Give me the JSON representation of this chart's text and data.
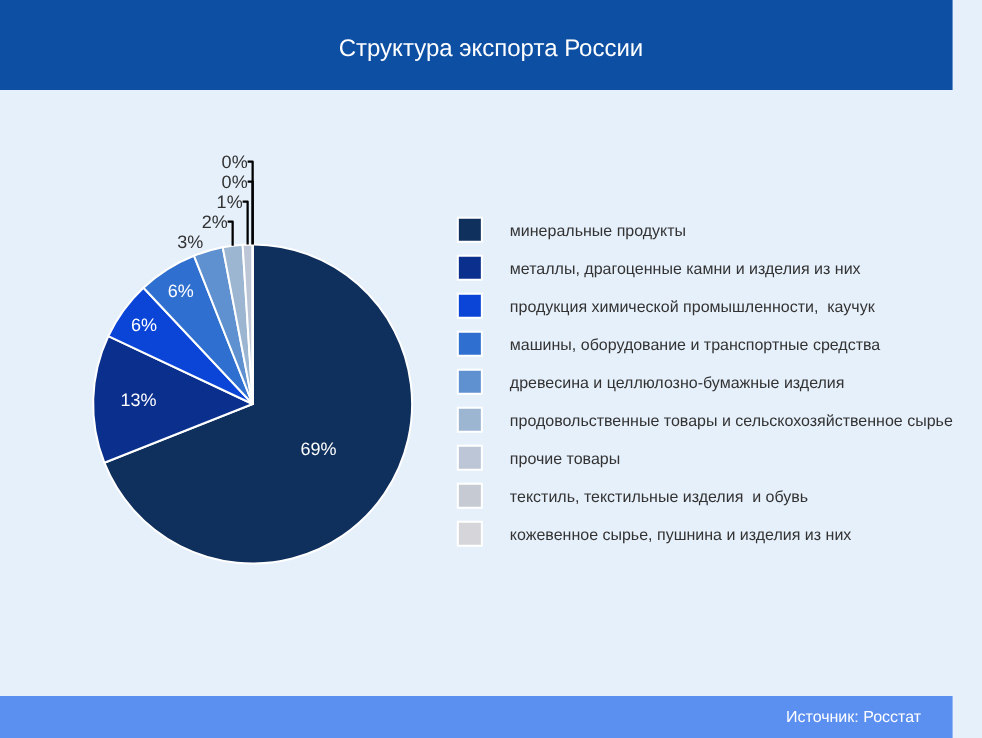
{
  "chart_data": {
    "type": "pie",
    "title": "Структура экспорта России",
    "categories": [
      "минеральные продукты",
      "металлы, драгоценные камни и изделия из них",
      "продукция химической промышленности,  каучук",
      "машины, оборудование и транспортные средства",
      "древесина и целлюлозно-бумажные изделия",
      "продовольственные товары и сельскохозяйственное сырье",
      "прочие товары",
      "текстиль, текстильные изделия  и обувь",
      "кожевенное сырье, пушнина и изделия из них"
    ],
    "values": [
      69,
      13,
      6,
      6,
      3,
      2,
      1,
      0,
      0
    ],
    "value_labels": [
      "69%",
      "13%",
      "6%",
      "6%",
      "3%",
      "2%",
      "1%",
      "0%",
      "0%"
    ],
    "colors": [
      "#0f2f5c",
      "#0a2f8c",
      "#0b45d8",
      "#2f6fd0",
      "#5f90d0",
      "#9cb6d2",
      "#bcc6d6",
      "#c6cad2",
      "#d6d6da"
    ],
    "legend": "right",
    "annotations": [
      "Источник: Росстат"
    ]
  }
}
